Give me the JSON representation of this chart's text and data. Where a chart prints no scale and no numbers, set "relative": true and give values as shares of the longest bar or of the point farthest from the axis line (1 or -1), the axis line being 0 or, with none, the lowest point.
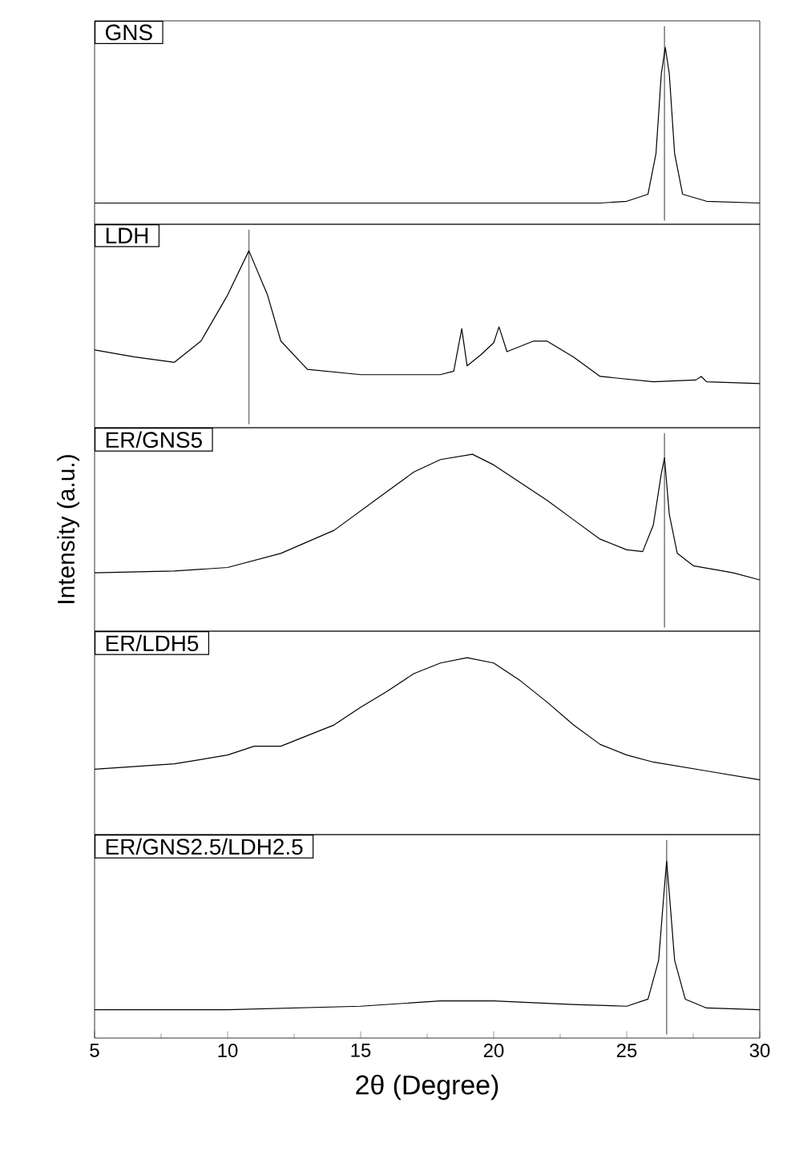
{
  "chart_data": [
    {
      "type": "line",
      "title": "GNS",
      "relative": true,
      "xlim": [
        5,
        30
      ],
      "tick_labels": false,
      "ref_lines": [
        {
          "axis": "x",
          "value": 26.42,
          "color": "#808080"
        }
      ],
      "series": [
        {
          "color": "#000000",
          "x": [
            5,
            10,
            15,
            20,
            24,
            25,
            25.8,
            26.1,
            26.3,
            26.45,
            26.6,
            26.8,
            27.1,
            28,
            30
          ],
          "values": [
            0.12,
            0.12,
            0.12,
            0.12,
            0.12,
            0.13,
            0.17,
            0.4,
            0.85,
            1.0,
            0.85,
            0.4,
            0.17,
            0.13,
            0.12
          ]
        }
      ]
    },
    {
      "type": "line",
      "title": "LDH",
      "relative": true,
      "xlim": [
        5,
        30
      ],
      "tick_labels": false,
      "ref_lines": [
        {
          "axis": "x",
          "value": 10.8,
          "color": "#808080"
        }
      ],
      "series": [
        {
          "color": "#000000",
          "x": [
            5,
            6.5,
            8,
            9,
            10,
            10.8,
            11.5,
            12,
            13,
            15,
            18,
            18.5,
            18.8,
            19,
            19.5,
            20,
            20.2,
            20.5,
            21.5,
            22,
            23,
            24,
            26,
            27.6,
            27.8,
            28,
            30
          ],
          "values": [
            0.44,
            0.4,
            0.37,
            0.49,
            0.75,
            1.0,
            0.75,
            0.49,
            0.33,
            0.3,
            0.3,
            0.32,
            0.56,
            0.35,
            0.41,
            0.48,
            0.57,
            0.43,
            0.49,
            0.49,
            0.4,
            0.29,
            0.26,
            0.27,
            0.29,
            0.26,
            0.25
          ]
        }
      ]
    },
    {
      "type": "line",
      "title": "ER/GNS5",
      "ylabel": "Intensity (a.u.)",
      "relative": true,
      "xlim": [
        5,
        30
      ],
      "tick_labels": false,
      "ref_lines": [
        {
          "axis": "x",
          "value": 26.42,
          "color": "#808080"
        }
      ],
      "series": [
        {
          "color": "#000000",
          "x": [
            5,
            8,
            10,
            12,
            14,
            16,
            17,
            18,
            19.2,
            20,
            21,
            22,
            23,
            24,
            25,
            25.6,
            26,
            26.3,
            26.42,
            26.6,
            26.9,
            27.5,
            29,
            30
          ],
          "values": [
            0.33,
            0.34,
            0.36,
            0.44,
            0.57,
            0.79,
            0.9,
            0.97,
            1.0,
            0.94,
            0.84,
            0.74,
            0.63,
            0.52,
            0.46,
            0.45,
            0.6,
            0.89,
            0.98,
            0.66,
            0.44,
            0.37,
            0.33,
            0.29
          ]
        }
      ]
    },
    {
      "type": "line",
      "title": "ER/LDH5",
      "relative": true,
      "xlim": [
        5,
        30
      ],
      "tick_labels": false,
      "series": [
        {
          "color": "#000000",
          "x": [
            5,
            8,
            10,
            11,
            12,
            13,
            14,
            15,
            16,
            17,
            18,
            19,
            20,
            21,
            22,
            23,
            24,
            25,
            26,
            28,
            30
          ],
          "values": [
            0.37,
            0.4,
            0.45,
            0.5,
            0.5,
            0.56,
            0.62,
            0.72,
            0.81,
            0.91,
            0.97,
            1.0,
            0.97,
            0.87,
            0.75,
            0.62,
            0.51,
            0.45,
            0.41,
            0.36,
            0.31
          ]
        }
      ]
    },
    {
      "type": "line",
      "title": "ER/GNS2.5/LDH2.5",
      "xlabel": "2θ (Degree)",
      "relative": true,
      "xlim": [
        5,
        30
      ],
      "xticks": [
        5,
        10,
        15,
        20,
        25,
        30
      ],
      "tick_labels": "x",
      "ref_lines": [
        {
          "axis": "x",
          "value": 26.5,
          "color": "#808080"
        }
      ],
      "series": [
        {
          "color": "#000000",
          "x": [
            5,
            10,
            15,
            18,
            20,
            23,
            25,
            25.8,
            26.2,
            26.4,
            26.5,
            26.6,
            26.8,
            27.2,
            28,
            30
          ],
          "values": [
            0.16,
            0.16,
            0.18,
            0.21,
            0.21,
            0.19,
            0.18,
            0.22,
            0.44,
            0.82,
            1.0,
            0.82,
            0.44,
            0.22,
            0.17,
            0.16
          ]
        }
      ]
    }
  ]
}
